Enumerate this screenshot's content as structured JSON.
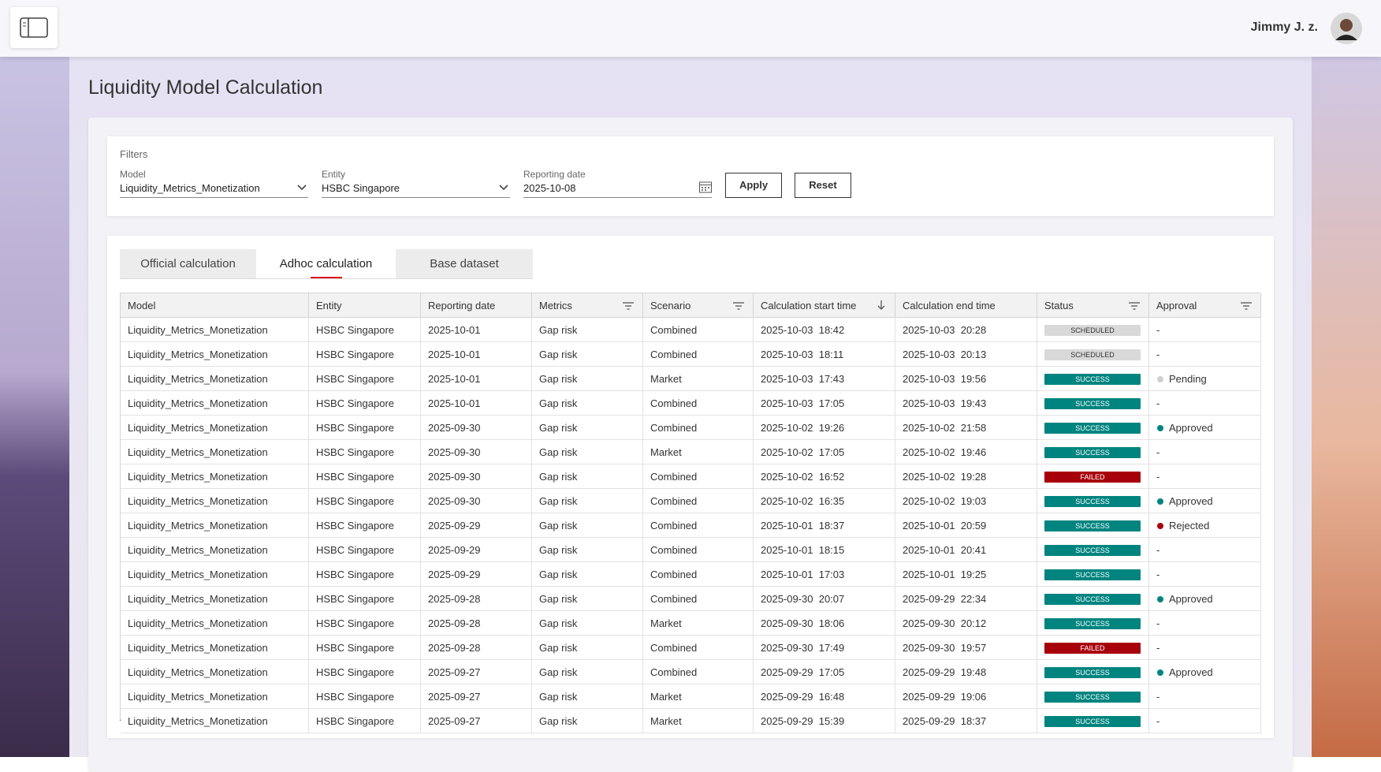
{
  "header": {
    "user_name": "Jimmy J. z."
  },
  "page": {
    "title": "Liquidity Model Calculation"
  },
  "filters": {
    "title": "Filters",
    "fields": [
      {
        "label": "Model",
        "value": "Liquidity_Metrics_Monetization"
      },
      {
        "label": "Entity",
        "value": "HSBC Singapore"
      },
      {
        "label": "Reporting date",
        "value": "2025-10-08"
      }
    ],
    "buttons": [
      "Apply",
      "Reset"
    ]
  },
  "tabs": {
    "items": [
      "Official calculation",
      "Adhoc calculation",
      "Base dataset"
    ],
    "active": 1
  },
  "table": {
    "columns": [
      {
        "label": "Model",
        "icon": null
      },
      {
        "label": "Entity",
        "icon": null
      },
      {
        "label": "Reporting date",
        "icon": null
      },
      {
        "label": "Metrics",
        "icon": "filter"
      },
      {
        "label": "Scenario",
        "icon": "filter"
      },
      {
        "label": "Calculation start time",
        "icon": "sort"
      },
      {
        "label": "Calculation end time",
        "icon": null
      },
      {
        "label": "Status",
        "icon": "filter"
      },
      {
        "label": "Approval",
        "icon": "filter"
      }
    ],
    "status_colors": {
      "SCHEDULED": {
        "bg": "#d9d9d9",
        "fg": "#333333"
      },
      "SUCCESS": {
        "bg": "#00847f",
        "fg": "#ffffff"
      },
      "FAILED": {
        "bg": "#a8000b",
        "fg": "#ffffff"
      }
    },
    "approval_colors": {
      "Pending": "#d0d0d0",
      "Approved": "#00847f",
      "Rejected": "#a8000b"
    },
    "rows": [
      [
        "Liquidity_Metrics_Monetization",
        "HSBC Singapore",
        "2025-10-01",
        "Gap risk",
        "Combined",
        "2025-10-03  18:42",
        "2025-10-03  20:28",
        "SCHEDULED",
        "-"
      ],
      [
        "Liquidity_Metrics_Monetization",
        "HSBC Singapore",
        "2025-10-01",
        "Gap risk",
        "Combined",
        "2025-10-03  18:11",
        "2025-10-03  20:13",
        "SCHEDULED",
        "-"
      ],
      [
        "Liquidity_Metrics_Monetization",
        "HSBC Singapore",
        "2025-10-01",
        "Gap risk",
        "Market",
        "2025-10-03  17:43",
        "2025-10-03  19:56",
        "SUCCESS",
        "Pending"
      ],
      [
        "Liquidity_Metrics_Monetization",
        "HSBC Singapore",
        "2025-10-01",
        "Gap risk",
        "Combined",
        "2025-10-03  17:05",
        "2025-10-03  19:43",
        "SUCCESS",
        "-"
      ],
      [
        "Liquidity_Metrics_Monetization",
        "HSBC Singapore",
        "2025-09-30",
        "Gap risk",
        "Combined",
        "2025-10-02  19:26",
        "2025-10-02  21:58",
        "SUCCESS",
        "Approved"
      ],
      [
        "Liquidity_Metrics_Monetization",
        "HSBC Singapore",
        "2025-09-30",
        "Gap risk",
        "Market",
        "2025-10-02  17:05",
        "2025-10-02  19:46",
        "SUCCESS",
        "-"
      ],
      [
        "Liquidity_Metrics_Monetization",
        "HSBC Singapore",
        "2025-09-30",
        "Gap risk",
        "Combined",
        "2025-10-02  16:52",
        "2025-10-02  19:28",
        "FAILED",
        "-"
      ],
      [
        "Liquidity_Metrics_Monetization",
        "HSBC Singapore",
        "2025-09-30",
        "Gap risk",
        "Combined",
        "2025-10-02  16:35",
        "2025-10-02  19:03",
        "SUCCESS",
        "Approved"
      ],
      [
        "Liquidity_Metrics_Monetization",
        "HSBC Singapore",
        "2025-09-29",
        "Gap risk",
        "Combined",
        "2025-10-01  18:37",
        "2025-10-01  20:59",
        "SUCCESS",
        "Rejected"
      ],
      [
        "Liquidity_Metrics_Monetization",
        "HSBC Singapore",
        "2025-09-29",
        "Gap risk",
        "Combined",
        "2025-10-01  18:15",
        "2025-10-01  20:41",
        "SUCCESS",
        "-"
      ],
      [
        "Liquidity_Metrics_Monetization",
        "HSBC Singapore",
        "2025-09-29",
        "Gap risk",
        "Combined",
        "2025-10-01  17:03",
        "2025-10-01  19:25",
        "SUCCESS",
        "-"
      ],
      [
        "Liquidity_Metrics_Monetization",
        "HSBC Singapore",
        "2025-09-28",
        "Gap risk",
        "Combined",
        "2025-09-30  20:07",
        "2025-09-29  22:34",
        "SUCCESS",
        "Approved"
      ],
      [
        "Liquidity_Metrics_Monetization",
        "HSBC Singapore",
        "2025-09-28",
        "Gap risk",
        "Market",
        "2025-09-30  18:06",
        "2025-09-30  20:12",
        "SUCCESS",
        "-"
      ],
      [
        "Liquidity_Metrics_Monetization",
        "HSBC Singapore",
        "2025-09-28",
        "Gap risk",
        "Combined",
        "2025-09-30  17:49",
        "2025-09-30  19:57",
        "FAILED",
        "-"
      ],
      [
        "Liquidity_Metrics_Monetization",
        "HSBC Singapore",
        "2025-09-27",
        "Gap risk",
        "Combined",
        "2025-09-29  17:05",
        "2025-09-29  19:48",
        "SUCCESS",
        "Approved"
      ],
      [
        "Liquidity_Metrics_Monetization",
        "HSBC Singapore",
        "2025-09-27",
        "Gap risk",
        "Market",
        "2025-09-29  16:48",
        "2025-09-29  19:06",
        "SUCCESS",
        "-"
      ],
      [
        "Liquidity_Metrics_Monetization",
        "HSBC Singapore",
        "2025-09-27",
        "Gap risk",
        "Market",
        "2025-09-29  15:39",
        "2025-09-29  18:37",
        "SUCCESS",
        "-"
      ]
    ]
  }
}
